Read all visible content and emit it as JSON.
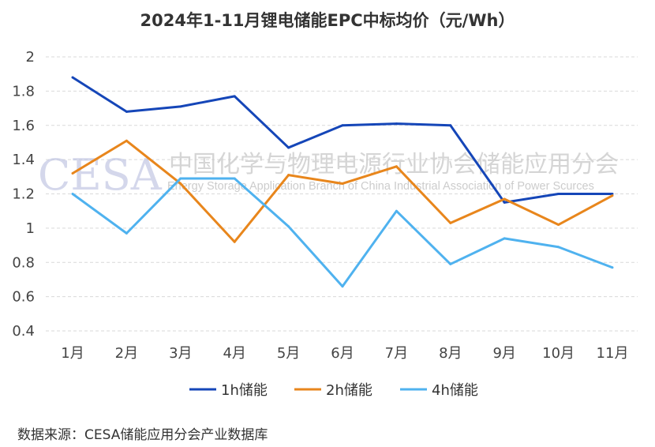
{
  "watermark": {
    "logo": "CESA",
    "cn": "中国化学与物理电源行业协会储能应用分会",
    "en": "Energy Storage Application Branch of China Industrial Association of Power Scurces"
  },
  "source": "数据来源：CESA储能应用分会产业数据库",
  "chart_data": {
    "type": "line",
    "title": "2024年1-11月锂电储能EPC中标均价（元/Wh）",
    "xlabel": "",
    "ylabel": "",
    "categories": [
      "1月",
      "2月",
      "3月",
      "4月",
      "5月",
      "6月",
      "7月",
      "8月",
      "9月",
      "10月",
      "11月"
    ],
    "ylim": [
      0.4,
      2
    ],
    "yticks": [
      0.4,
      0.6,
      0.8,
      1,
      1.2,
      1.4,
      1.6,
      1.8,
      2
    ],
    "ytick_labels": [
      "0.4",
      "0.6",
      "0.8",
      "1",
      "1.2",
      "1.4",
      "1.6",
      "1.8",
      "2"
    ],
    "grid": true,
    "legend_position": "bottom",
    "series": [
      {
        "name": "1h储能",
        "color": "#1546b8",
        "values": [
          1.88,
          1.68,
          1.71,
          1.77,
          1.47,
          1.6,
          1.61,
          1.6,
          1.15,
          1.2,
          1.2
        ]
      },
      {
        "name": "2h储能",
        "color": "#e8861c",
        "values": [
          1.32,
          1.51,
          1.26,
          0.92,
          1.31,
          1.26,
          1.36,
          1.03,
          1.17,
          1.02,
          1.19
        ]
      },
      {
        "name": "4h储能",
        "color": "#4fb2ef",
        "values": [
          1.2,
          0.97,
          1.29,
          1.29,
          1.01,
          0.66,
          1.1,
          0.79,
          0.94,
          0.89,
          0.77
        ]
      }
    ]
  }
}
